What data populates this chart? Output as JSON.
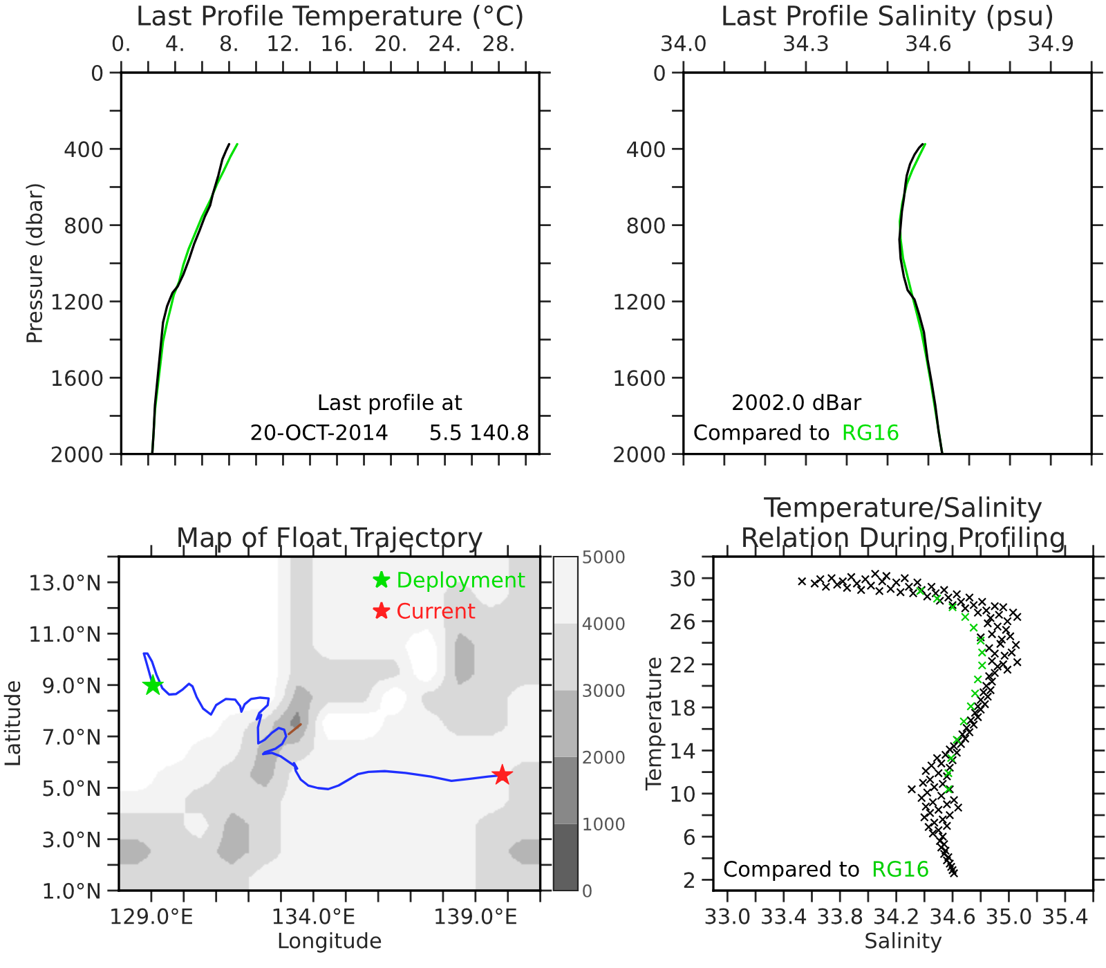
{
  "chart_data": [
    {
      "type": "line",
      "title": "Last Profile Temperature (°C)",
      "ylabel": "Pressure (dbar)",
      "xlim": [
        0,
        31
      ],
      "xticks": [
        {
          "value": 0,
          "label": "0."
        },
        {
          "value": 2,
          "label": null
        },
        {
          "value": 4,
          "label": "4."
        },
        {
          "value": 6,
          "label": null
        },
        {
          "value": 8,
          "label": "8."
        },
        {
          "value": 10,
          "label": null
        },
        {
          "value": 12,
          "label": "12."
        },
        {
          "value": 14,
          "label": null
        },
        {
          "value": 16,
          "label": "16."
        },
        {
          "value": 18,
          "label": null
        },
        {
          "value": 20,
          "label": "20."
        },
        {
          "value": 22,
          "label": null
        },
        {
          "value": 24,
          "label": "24."
        },
        {
          "value": 26,
          "label": null
        },
        {
          "value": 28,
          "label": "28."
        },
        {
          "value": 30,
          "label": null
        }
      ],
      "ylim": [
        2000,
        0
      ],
      "yticks": [
        0,
        {
          "value": 200,
          "label": null
        },
        400,
        {
          "value": 600,
          "label": null
        },
        800,
        {
          "value": 1000,
          "label": null
        },
        1200,
        {
          "value": 1400,
          "label": null
        },
        1600,
        {
          "value": 1800,
          "label": null
        },
        2000
      ],
      "annotations": [
        "Last profile at",
        "20-OCT-2014      5.5 140.8"
      ],
      "series": [
        {
          "color": "#00e000",
          "x": [
            8.6,
            8.1,
            7.6,
            7.1,
            6.6,
            6.0,
            5.5,
            5.0,
            4.6,
            4.3,
            3.9,
            3.7,
            3.4,
            3.1,
            2.9,
            2.7,
            2.5,
            2.4,
            2.3
          ],
          "values": [
            375,
            440,
            515,
            585,
            670,
            755,
            840,
            925,
            1010,
            1095,
            1165,
            1225,
            1310,
            1410,
            1530,
            1650,
            1770,
            1890,
            2000
          ]
        },
        {
          "color": "#000000",
          "x": [
            8.0,
            7.8,
            7.5,
            7.2,
            6.8,
            6.6,
            6.2,
            5.8,
            5.4,
            5.0,
            4.6,
            4.2,
            3.8,
            3.6,
            3.4,
            3.1,
            2.9,
            2.7,
            2.5,
            2.4,
            2.3
          ],
          "values": [
            375,
            405,
            455,
            540,
            635,
            695,
            755,
            830,
            900,
            985,
            1060,
            1120,
            1155,
            1190,
            1225,
            1310,
            1455,
            1600,
            1745,
            1890,
            2000
          ]
        }
      ]
    },
    {
      "type": "line",
      "title": "Last Profile Salinity (psu)",
      "xlim": [
        34.0,
        35.0
      ],
      "xticks": [
        {
          "value": 34.0,
          "label": "34.0"
        },
        {
          "value": 34.1,
          "label": null
        },
        {
          "value": 34.2,
          "label": null
        },
        34.3,
        {
          "value": 34.4,
          "label": null
        },
        {
          "value": 34.5,
          "label": null
        },
        34.6,
        {
          "value": 34.7,
          "label": null
        },
        {
          "value": 34.8,
          "label": null
        },
        34.9,
        {
          "value": 35.0,
          "label": null
        }
      ],
      "ylim": [
        2000,
        0
      ],
      "yticks": [
        0,
        {
          "value": 200,
          "label": null
        },
        400,
        {
          "value": 600,
          "label": null
        },
        800,
        {
          "value": 1000,
          "label": null
        },
        1200,
        {
          "value": 1400,
          "label": null
        },
        1600,
        {
          "value": 1800,
          "label": null
        },
        2000
      ],
      "annotations": [
        "2002.0 dBar",
        "Compared to"
      ],
      "series": [
        {
          "name": "RG16",
          "color": "#00e000",
          "x": [
            34.592,
            34.577,
            34.56,
            34.547,
            34.536,
            34.53,
            34.532,
            34.538,
            34.549,
            34.56,
            34.572,
            34.583,
            34.594,
            34.606,
            34.617,
            34.626,
            34.634
          ],
          "values": [
            375,
            440,
            515,
            585,
            685,
            780,
            875,
            975,
            1070,
            1165,
            1265,
            1360,
            1480,
            1625,
            1770,
            1890,
            2000
          ]
        },
        {
          "color": "#000000",
          "x": [
            34.586,
            34.577,
            34.566,
            34.555,
            34.547,
            34.544,
            34.54,
            34.535,
            34.532,
            34.529,
            34.532,
            34.54,
            34.549,
            34.566,
            34.577,
            34.589,
            34.598,
            34.608,
            34.617,
            34.625,
            34.634
          ],
          "values": [
            375,
            395,
            430,
            480,
            540,
            585,
            660,
            730,
            805,
            875,
            975,
            1070,
            1140,
            1190,
            1265,
            1360,
            1505,
            1625,
            1745,
            1880,
            2000
          ]
        }
      ]
    },
    {
      "type": "line",
      "title": "Map of Float Trajectory",
      "xlabel": "Longitude",
      "ylabel": "Latitude",
      "legend": "top right",
      "clim": [
        0,
        5000
      ],
      "cticks": [
        0,
        1000,
        2000,
        3000,
        4000,
        5000
      ],
      "xlim": [
        128,
        141
      ],
      "xticks": [
        {
          "value": 129,
          "label": "129.0°E"
        },
        {
          "value": 130,
          "label": null
        },
        {
          "value": 131,
          "label": null
        },
        {
          "value": 132,
          "label": null
        },
        {
          "value": 133,
          "label": null
        },
        {
          "value": 134,
          "label": "134.0°E"
        },
        {
          "value": 135,
          "label": null
        },
        {
          "value": 136,
          "label": null
        },
        {
          "value": 137,
          "label": null
        },
        {
          "value": 138,
          "label": null
        },
        {
          "value": 139,
          "label": "139.0°E"
        },
        {
          "value": 140,
          "label": null
        },
        {
          "value": 141,
          "label": null
        }
      ],
      "ylim": [
        1,
        14
      ],
      "yticks": [
        {
          "value": 1,
          "label": "1.0°N"
        },
        {
          "value": 2,
          "label": null
        },
        {
          "value": 3,
          "label": "3.0°N"
        },
        {
          "value": 4,
          "label": null
        },
        {
          "value": 5,
          "label": "5.0°N"
        },
        {
          "value": 6,
          "label": null
        },
        {
          "value": 7,
          "label": "7.0°N"
        },
        {
          "value": 8,
          "label": null
        },
        {
          "value": 9,
          "label": "9.0°N"
        },
        {
          "value": 10,
          "label": null
        },
        {
          "value": 11,
          "label": "11.0°N"
        },
        {
          "value": 12,
          "label": null
        },
        {
          "value": 13,
          "label": "13.0°N"
        },
        {
          "value": 14,
          "label": null
        }
      ],
      "series": [
        {
          "color": "#1f2fff",
          "x": [
            129.05,
            128.84,
            128.77,
            128.88,
            129.02,
            129.16,
            129.34,
            129.55,
            129.76,
            129.97,
            130.16,
            130.27,
            130.4,
            130.6,
            130.84,
            131.0,
            131.3,
            131.59,
            131.74,
            131.78,
            131.88,
            132.08,
            132.36,
            132.62,
            132.59,
            132.33,
            132.25,
            132.39,
            132.29,
            132.3,
            132.5,
            132.72,
            132.93,
            133.1,
            133.16,
            133.04,
            132.83,
            132.5,
            132.45,
            132.72,
            133.0,
            133.24,
            133.38,
            133.5,
            133.4,
            133.46,
            133.61,
            133.84,
            134.14,
            134.46,
            134.78,
            135.09,
            135.37,
            135.7,
            136.2,
            136.84,
            137.62,
            138.26,
            138.83,
            139.39,
            139.83
          ],
          "values": [
            8.98,
            9.92,
            10.23,
            10.23,
            9.92,
            9.4,
            8.88,
            8.63,
            8.65,
            8.83,
            9.05,
            8.95,
            8.53,
            8.08,
            7.85,
            8.22,
            8.46,
            8.43,
            8.18,
            7.96,
            8.25,
            8.46,
            8.51,
            8.48,
            8.22,
            7.91,
            7.66,
            7.84,
            7.35,
            6.73,
            6.87,
            7.14,
            7.33,
            7.26,
            7.0,
            6.71,
            6.52,
            6.38,
            6.31,
            6.36,
            6.22,
            6.01,
            5.89,
            5.75,
            5.96,
            5.65,
            5.32,
            5.09,
            4.99,
            4.95,
            5.09,
            5.32,
            5.53,
            5.62,
            5.65,
            5.58,
            5.44,
            5.27,
            5.35,
            5.44,
            5.49
          ]
        },
        {
          "color": "#a0522d",
          "x": [
            133.24,
            133.61
          ],
          "values": [
            7.09,
            7.47
          ]
        },
        {
          "type": "scatter",
          "marker": "star",
          "name": "Deployment",
          "color": "#00e000",
          "x": [
            129.05
          ],
          "values": [
            8.98
          ]
        },
        {
          "type": "scatter",
          "marker": "star",
          "name": "Current",
          "color": "#ff2020",
          "x": [
            139.83
          ],
          "values": [
            5.49
          ]
        }
      ]
    },
    {
      "type": "scatter",
      "marker": "cross",
      "title": "Temperature/Salinity\nRelation During Profiling",
      "xlabel": "Salinity",
      "ylabel": "Temperature",
      "xlim": [
        32.9,
        35.6
      ],
      "xticks": [
        {
          "value": 33.0,
          "label": "33.0"
        },
        {
          "value": 33.2,
          "label": null
        },
        33.4,
        {
          "value": 33.6,
          "label": null
        },
        33.8,
        {
          "value": 34.0,
          "label": null
        },
        34.2,
        {
          "value": 34.4,
          "label": null
        },
        34.6,
        {
          "value": 34.8,
          "label": null
        },
        {
          "value": 35.0,
          "label": "35.0"
        },
        {
          "value": 35.2,
          "label": null
        },
        35.4,
        {
          "value": 35.6,
          "label": null
        }
      ],
      "ylim": [
        1,
        32
      ],
      "yticks": [
        2,
        {
          "value": 4,
          "label": null
        },
        6,
        {
          "value": 8,
          "label": null
        },
        10,
        {
          "value": 12,
          "label": null
        },
        14,
        {
          "value": 16,
          "label": null
        },
        18,
        {
          "value": 20,
          "label": null
        },
        22,
        {
          "value": 24,
          "label": null
        },
        26,
        {
          "value": 28,
          "label": null
        },
        30,
        {
          "value": 32,
          "label": null
        }
      ],
      "annotations": [
        "Compared to"
      ],
      "series": [
        {
          "color": "#000000",
          "x": [
            33.53,
            33.62,
            33.66,
            33.7,
            33.74,
            33.78,
            33.82,
            33.85,
            33.88,
            33.92,
            33.95,
            33.98,
            34.02,
            34.05,
            34.08,
            34.1,
            34.13,
            34.16,
            34.2,
            34.23,
            34.26,
            34.29,
            34.32,
            34.35,
            34.38,
            34.42,
            34.45,
            34.48,
            34.51,
            34.54,
            34.57,
            34.6,
            34.63,
            34.66,
            34.69,
            34.72,
            34.75,
            34.78,
            34.81,
            34.84,
            34.87,
            34.9,
            34.93,
            34.96,
            34.99,
            35.03,
            35.06,
            34.8,
            34.85,
            34.88,
            34.92,
            34.95,
            34.98,
            35.01,
            35.05,
            34.86,
            34.9,
            34.94,
            34.97,
            35.02,
            35.06,
            34.88,
            34.92,
            34.96,
            34.99,
            34.9,
            34.86,
            34.88,
            34.84,
            34.87,
            34.82,
            34.85,
            34.8,
            34.83,
            34.78,
            34.8,
            34.76,
            34.78,
            34.73,
            34.75,
            34.7,
            34.72,
            34.67,
            34.69,
            34.64,
            34.66,
            34.61,
            34.58,
            34.63,
            34.55,
            34.49,
            34.6,
            34.52,
            34.45,
            34.58,
            34.41,
            34.5,
            34.56,
            34.44,
            34.39,
            34.53,
            34.47,
            34.31,
            34.58,
            34.42,
            34.52,
            34.38,
            34.61,
            34.46,
            34.56,
            34.41,
            34.64,
            34.5,
            34.44,
            34.58,
            34.4,
            34.53,
            34.47,
            34.56,
            34.43,
            34.5,
            34.46,
            34.53,
            34.51,
            34.54,
            34.52,
            34.55,
            34.54,
            34.57,
            34.56,
            34.58,
            34.59,
            34.6,
            34.61
          ],
          "values": [
            29.7,
            29.5,
            29.9,
            29.2,
            30.0,
            29.4,
            29.7,
            29.1,
            30.1,
            29.5,
            28.9,
            29.9,
            29.3,
            30.4,
            28.8,
            29.7,
            30.2,
            29.0,
            29.6,
            28.7,
            30.0,
            29.2,
            28.6,
            29.6,
            28.9,
            28.3,
            29.2,
            28.6,
            27.9,
            28.9,
            28.2,
            27.5,
            28.5,
            27.8,
            27.2,
            28.2,
            27.5,
            26.8,
            27.8,
            27.0,
            26.3,
            27.4,
            26.6,
            27.3,
            26.0,
            26.8,
            26.4,
            24.5,
            25.8,
            24.8,
            25.5,
            24.3,
            25.2,
            24.6,
            23.8,
            23.5,
            23.0,
            23.9,
            22.8,
            23.1,
            22.2,
            22.3,
            21.8,
            22.0,
            21.5,
            21.2,
            20.9,
            20.4,
            20.0,
            19.6,
            19.4,
            19.0,
            18.7,
            18.3,
            18.1,
            17.8,
            17.5,
            17.1,
            16.8,
            16.4,
            16.1,
            15.7,
            15.5,
            15.1,
            14.9,
            14.6,
            14.4,
            14.1,
            13.8,
            13.6,
            13.3,
            13.1,
            12.8,
            12.6,
            12.4,
            12.1,
            11.9,
            11.6,
            11.3,
            11.0,
            10.9,
            10.6,
            10.4,
            10.4,
            10.1,
            9.8,
            9.6,
            9.4,
            9.2,
            9.0,
            8.8,
            8.7,
            8.5,
            8.2,
            8.0,
            7.8,
            7.6,
            7.3,
            7.0,
            6.9,
            6.6,
            6.3,
            6.0,
            5.6,
            5.3,
            5.0,
            4.7,
            4.4,
            4.1,
            3.8,
            3.5,
            3.2,
            2.9,
            2.6
          ]
        },
        {
          "name": "RG16",
          "color": "#00d000",
          "x": [
            34.37,
            34.49,
            34.6,
            34.69,
            34.75,
            34.8,
            34.81,
            34.81,
            34.78,
            34.76,
            34.73,
            34.68,
            34.63,
            34.59,
            34.57,
            34.57
          ],
          "values": [
            28.8,
            28.1,
            27.3,
            26.4,
            25.4,
            24.2,
            23.1,
            21.9,
            20.6,
            19.3,
            18.1,
            16.7,
            15.0,
            13.3,
            11.9,
            10.4
          ]
        }
      ]
    }
  ]
}
